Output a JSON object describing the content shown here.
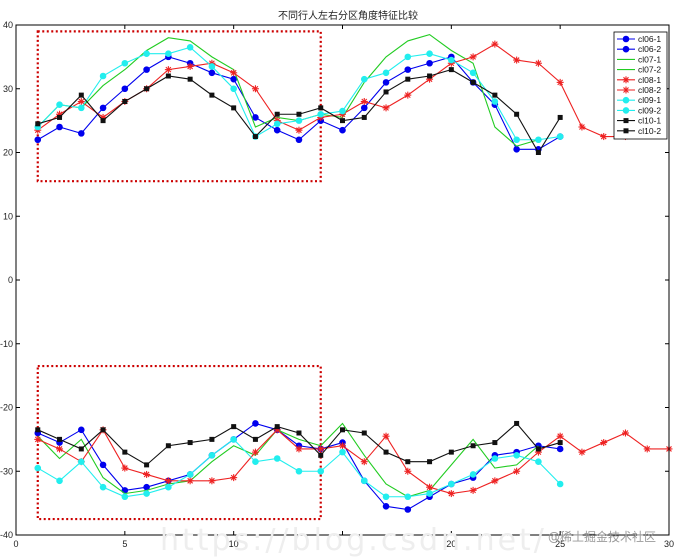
{
  "chart_data": {
    "type": "line",
    "title": "不同行人左右分区角度特征比较",
    "xlabel": "",
    "ylabel": "",
    "xlim": [
      0,
      30
    ],
    "ylim": [
      -40,
      40
    ],
    "xticks": [
      0,
      5,
      10,
      15,
      20,
      25,
      30
    ],
    "yticks": [
      40,
      30,
      20,
      10,
      0,
      -10,
      -20,
      -30,
      -40
    ],
    "xtick_labels": [
      "0",
      "5",
      "10",
      "",
      "20",
      "25",
      "30"
    ],
    "grid": false,
    "legend_position": "top-right",
    "highlight_boxes": [
      {
        "x": [
          1,
          14
        ],
        "y": [
          15.5,
          39
        ],
        "style": "dotted",
        "color": "#cc0000"
      },
      {
        "x": [
          1,
          14
        ],
        "y": [
          -37.5,
          -13.5
        ],
        "style": "dotted",
        "color": "#cc0000"
      }
    ],
    "series": [
      {
        "name": "cl06-1",
        "color": "#0000ee",
        "marker": "circle",
        "x": [
          1,
          2,
          3,
          4,
          5,
          6,
          7,
          8,
          9,
          10,
          11,
          12,
          13,
          14,
          15,
          16,
          17,
          18,
          19,
          20,
          21,
          22,
          23,
          24,
          25
        ],
        "y": [
          22,
          24,
          23,
          27,
          30,
          33,
          35,
          34,
          32.5,
          31.5,
          25.5,
          23.5,
          22,
          25,
          23.5,
          27,
          31,
          33,
          34,
          35,
          31,
          27.5,
          20.5,
          20.5,
          22.5
        ]
      },
      {
        "name": "cl06-2",
        "color": "#0000ee",
        "marker": "circle",
        "x": [
          1,
          2,
          3,
          4,
          5,
          6,
          7,
          8,
          9,
          10,
          11,
          12,
          13,
          14,
          15,
          16,
          17,
          18,
          19,
          20,
          21,
          22,
          23,
          24,
          25
        ],
        "y": [
          -24,
          -25.5,
          -23.5,
          -29,
          -33,
          -32.5,
          -31.5,
          -30.5,
          -27.5,
          -25,
          -22.5,
          -23.5,
          -26,
          -26.5,
          -25.5,
          -31.5,
          -35.5,
          -36,
          -34,
          -32,
          -31,
          -27.5,
          -27,
          -26,
          -26.5
        ]
      },
      {
        "name": "cl07-1",
        "color": "#22cc22",
        "marker": "none",
        "x": [
          1,
          2,
          3,
          4,
          5,
          6,
          7,
          8,
          9,
          10,
          11,
          12,
          13,
          14,
          15,
          16,
          17,
          18,
          19,
          20,
          21,
          22,
          23,
          24
        ],
        "y": [
          24,
          27.5,
          27,
          30.5,
          33,
          36,
          38,
          37.5,
          35,
          33,
          24,
          25.5,
          25,
          26,
          25.5,
          31,
          35,
          37.5,
          38.5,
          36,
          34,
          24,
          21,
          22
        ]
      },
      {
        "name": "cl07-2",
        "color": "#22cc22",
        "marker": "none",
        "x": [
          1,
          2,
          3,
          4,
          5,
          6,
          7,
          8,
          9,
          10,
          11,
          12,
          13,
          14,
          15,
          16,
          17,
          18,
          19,
          20,
          21,
          22,
          23,
          24
        ],
        "y": [
          -24.5,
          -28,
          -25,
          -31,
          -33.5,
          -33,
          -32,
          -31.5,
          -28.5,
          -26,
          -27.5,
          -23.5,
          -25,
          -26,
          -22.5,
          -27.5,
          -32,
          -34,
          -33,
          -29,
          -25,
          -29.5,
          -29,
          -26
        ]
      },
      {
        "name": "cl08-1",
        "color": "#ee2222",
        "marker": "star",
        "x": [
          1,
          2,
          3,
          4,
          5,
          6,
          7,
          8,
          9,
          10,
          11,
          12,
          13,
          14,
          15,
          16,
          17,
          18,
          19,
          20,
          21,
          22,
          23,
          24,
          25,
          26,
          27,
          28
        ],
        "y": [
          23.5,
          26,
          28,
          25.5,
          28,
          30,
          33,
          33.5,
          34,
          32.5,
          30,
          25,
          23.5,
          25.5,
          26,
          28,
          27,
          29,
          31.5,
          34,
          35,
          37,
          34.5,
          34,
          31,
          24,
          22.5,
          22.5
        ]
      },
      {
        "name": "cl08-2",
        "color": "#ee2222",
        "marker": "star",
        "x": [
          1,
          2,
          3,
          4,
          5,
          6,
          7,
          8,
          9,
          10,
          11,
          12,
          13,
          14,
          15,
          16,
          17,
          18,
          19,
          20,
          21,
          22,
          23,
          24,
          25,
          26,
          27,
          28,
          29,
          30
        ],
        "y": [
          -25,
          -26.5,
          -28.5,
          -23.5,
          -29.5,
          -30.5,
          -31.5,
          -31.5,
          -31.5,
          -31,
          -27,
          -23.5,
          -26.5,
          -26.5,
          -26,
          -28.5,
          -24.5,
          -30,
          -32.5,
          -33.5,
          -33,
          -31.5,
          -30,
          -27,
          -24.5,
          -27,
          -25.5,
          -24,
          -26.5,
          -26.5
        ]
      },
      {
        "name": "cl09-1",
        "color": "#22eeee",
        "marker": "circle",
        "x": [
          1,
          2,
          3,
          4,
          5,
          6,
          7,
          8,
          9,
          10,
          11,
          12,
          13,
          14,
          15,
          16,
          17,
          18,
          19,
          20,
          21,
          22,
          23,
          24,
          25
        ],
        "y": [
          24,
          27.5,
          27,
          32,
          34,
          35.5,
          35.5,
          36.5,
          33.5,
          30,
          22.5,
          24.5,
          25,
          26,
          26.5,
          31.5,
          32.5,
          35,
          35.5,
          34.5,
          32.5,
          28,
          22,
          22,
          22.5
        ]
      },
      {
        "name": "cl09-2",
        "color": "#22eeee",
        "marker": "circle",
        "x": [
          1,
          2,
          3,
          4,
          5,
          6,
          7,
          8,
          9,
          10,
          11,
          12,
          13,
          14,
          15,
          16,
          17,
          18,
          19,
          20,
          21,
          22,
          23,
          24,
          25
        ],
        "y": [
          -29.5,
          -31.5,
          -28.5,
          -32.5,
          -34,
          -33.5,
          -32.5,
          -30.5,
          -27.5,
          -25,
          -28.5,
          -28,
          -30,
          -30,
          -27,
          -31.5,
          -34,
          -34,
          -33.5,
          -32,
          -30.5,
          -28,
          -27.5,
          -28.5,
          -32
        ]
      },
      {
        "name": "cl10-1",
        "color": "#111111",
        "marker": "square",
        "x": [
          1,
          2,
          3,
          4,
          5,
          6,
          7,
          8,
          9,
          10,
          11,
          12,
          13,
          14,
          15,
          16,
          17,
          18,
          19,
          20,
          21,
          22,
          23,
          24,
          25
        ],
        "y": [
          24.5,
          25.5,
          29,
          25,
          28,
          30,
          32,
          31.5,
          29,
          27,
          22.5,
          26,
          26,
          27,
          25,
          25.5,
          29.5,
          31.5,
          32,
          33,
          31,
          29,
          26,
          20,
          25.5
        ]
      },
      {
        "name": "cl10-2",
        "color": "#111111",
        "marker": "square",
        "x": [
          1,
          2,
          3,
          4,
          5,
          6,
          7,
          8,
          9,
          10,
          11,
          12,
          13,
          14,
          15,
          16,
          17,
          18,
          19,
          20,
          21,
          22,
          23,
          24,
          25
        ],
        "y": [
          -23.5,
          -25,
          -26.5,
          -23.5,
          -27,
          -29,
          -26,
          -25.5,
          -25,
          -23,
          -25,
          -23,
          -24,
          -27.5,
          -23.5,
          -24,
          -27,
          -28.5,
          -28.5,
          -27,
          -26,
          -25.5,
          -22.5,
          -26.5,
          -25.5
        ]
      }
    ]
  },
  "watermarks": {
    "url_text": "https://blog.csdn.net/",
    "site_text": "@稀土掘金技术社区"
  }
}
